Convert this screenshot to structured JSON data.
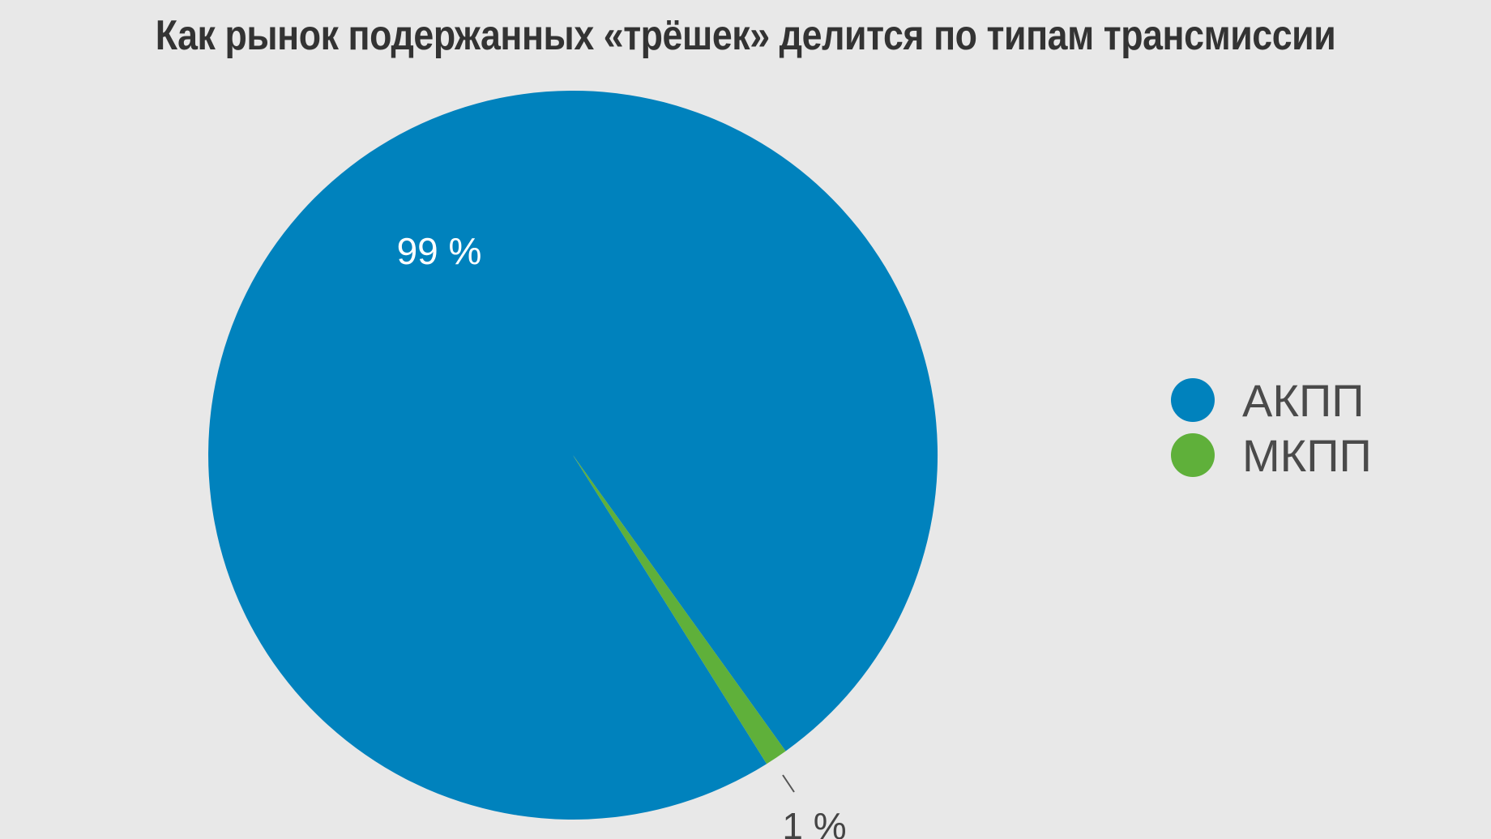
{
  "chart_data": {
    "type": "pie",
    "title": "Как рынок подержанных «трёшек» делится по типам трансмиссии",
    "slices": [
      {
        "name": "АКПП",
        "value": 99,
        "label": "99 %",
        "color": "#0082bd"
      },
      {
        "name": "МКПП",
        "value": 1,
        "label": "1 %",
        "color": "#5fb03a"
      }
    ],
    "legend_placement": "right"
  }
}
